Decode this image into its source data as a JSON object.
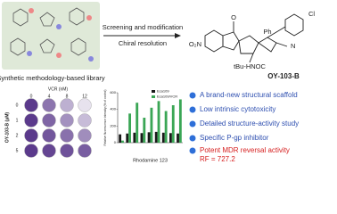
{
  "library": {
    "caption": "Synthetic methodology-based library"
  },
  "arrows": {
    "top": "Screening and modification",
    "bottom": "Chiral resolution"
  },
  "compound": {
    "name": "OY-103-B",
    "labels": [
      "O₂N",
      "Ph",
      "Cl",
      "tBu-HNOC",
      "N",
      "O"
    ]
  },
  "plate": {
    "x_title": "VCR (nM)",
    "x": [
      "0",
      "4",
      "8",
      "12"
    ],
    "y_title": "OY-103-B (μM)",
    "y": [
      "0",
      "1",
      "2",
      "5"
    ]
  },
  "chart_data": {
    "type": "bar",
    "x_label": "Rhodamine 123",
    "y_label": "Relative fluorescence intensity (% of control)",
    "series": [
      {
        "name": "Eca109",
        "color": "#1a1a1a",
        "values": [
          100,
          110,
          120,
          115,
          125,
          130,
          120,
          115,
          110
        ]
      },
      {
        "name": "Eca109/VCR",
        "color": "#3aa655",
        "values": [
          25,
          350,
          480,
          300,
          420,
          500,
          380,
          450,
          520
        ]
      }
    ],
    "ylim": [
      0,
      600
    ],
    "yticks": [
      0,
      200,
      400,
      600
    ]
  },
  "highlights": [
    "A brand-new structural scaffold",
    "Low intrinsic cytotoxicity",
    "Detailed structure-activity study",
    "Specific P-gp inhibitor",
    "Potent MDR reversal activity",
    "RF = 727.2"
  ]
}
